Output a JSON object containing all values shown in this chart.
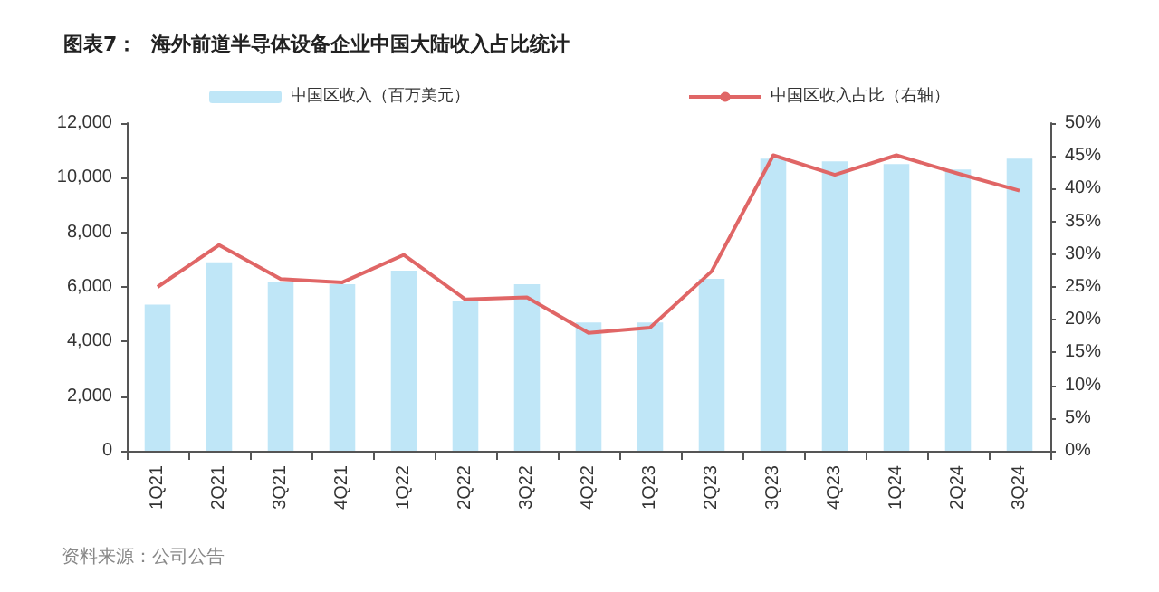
{
  "chart_data": {
    "type": "bar",
    "title": "图表7：  海外前道半导体设备企业中国大陆收入占比统计",
    "categories": [
      "1Q21",
      "2Q21",
      "3Q21",
      "4Q21",
      "1Q22",
      "2Q22",
      "3Q22",
      "4Q22",
      "1Q23",
      "2Q23",
      "3Q23",
      "4Q23",
      "1Q24",
      "2Q24",
      "3Q24"
    ],
    "series": [
      {
        "name": "中国区收入（百万美元）",
        "color": "#bfe6f7",
        "values": [
          5350,
          6900,
          6200,
          6100,
          6600,
          5500,
          6100,
          4700,
          4700,
          6300,
          10700,
          10600,
          10500,
          10300,
          10700
        ]
      },
      {
        "name": "中国区收入占比（右轴）",
        "type": "line",
        "axis": "y2",
        "color": "#e06666",
        "values": [
          25.0,
          31.4,
          26.2,
          25.7,
          29.9,
          23.1,
          23.4,
          18.0,
          18.8,
          27.4,
          45.1,
          42.1,
          45.1,
          42.3,
          39.7
        ]
      }
    ],
    "ylim": [
      0,
      12000
    ],
    "yticks": [
      {
        "value": 0,
        "label": "0"
      },
      {
        "value": 2000,
        "label": "2,000"
      },
      {
        "value": 4000,
        "label": "4,000"
      },
      {
        "value": 6000,
        "label": "6,000"
      },
      {
        "value": 8000,
        "label": "8,000"
      },
      {
        "value": 10000,
        "label": "10,000"
      },
      {
        "value": 12000,
        "label": "12,000"
      }
    ],
    "y2lim": [
      0,
      50
    ],
    "y2ticks": [
      {
        "value": 0,
        "label": "0%"
      },
      {
        "value": 5,
        "label": "5%"
      },
      {
        "value": 10,
        "label": "10%"
      },
      {
        "value": 15,
        "label": "15%"
      },
      {
        "value": 20,
        "label": "20%"
      },
      {
        "value": 25,
        "label": "25%"
      },
      {
        "value": 30,
        "label": "30%"
      },
      {
        "value": 35,
        "label": "35%"
      },
      {
        "value": 40,
        "label": "40%"
      },
      {
        "value": 45,
        "label": "45%"
      },
      {
        "value": 50,
        "label": "50%"
      }
    ],
    "grid": false,
    "legend": "top",
    "marker": "none",
    "line_style": "solid",
    "annotations": [
      "资料来源：公司公告"
    ]
  }
}
